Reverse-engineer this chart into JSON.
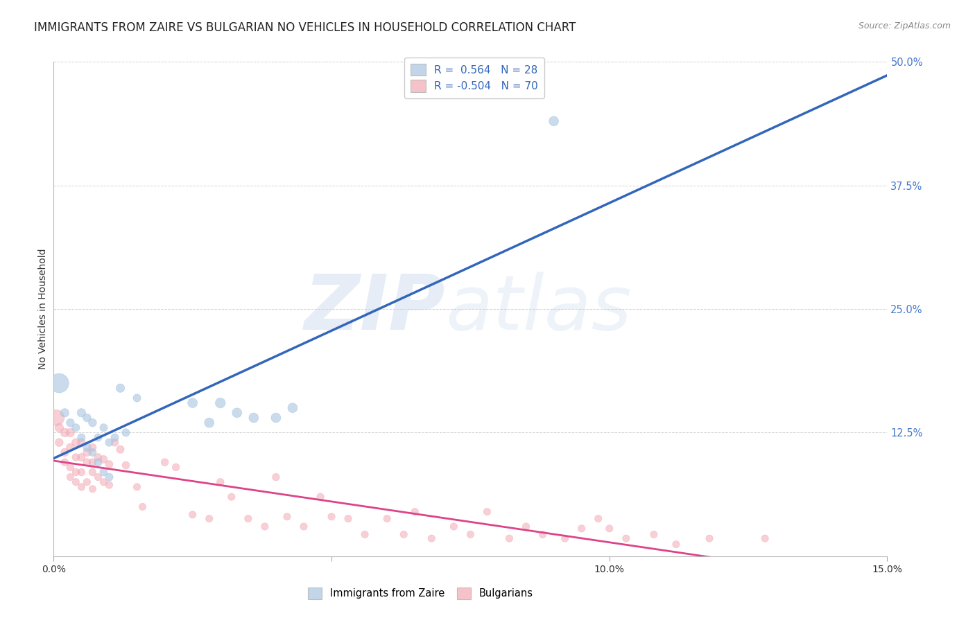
{
  "title": "IMMIGRANTS FROM ZAIRE VS BULGARIAN NO VEHICLES IN HOUSEHOLD CORRELATION CHART",
  "source_text": "Source: ZipAtlas.com",
  "ylabel": "No Vehicles in Household",
  "xlabel_blue": "Immigrants from Zaire",
  "xlabel_pink": "Bulgarians",
  "xlim": [
    0.0,
    0.15
  ],
  "ylim": [
    0.0,
    0.5
  ],
  "yticks": [
    0.0,
    0.125,
    0.25,
    0.375,
    0.5
  ],
  "ytick_labels": [
    "",
    "12.5%",
    "25.0%",
    "37.5%",
    "50.0%"
  ],
  "xticks": [
    0.0,
    0.05,
    0.1,
    0.15
  ],
  "xtick_labels": [
    "0.0%",
    "",
    "10.0%",
    "15.0%"
  ],
  "legend_r_blue": "0.564",
  "legend_n_blue": "28",
  "legend_r_pink": "-0.504",
  "legend_n_pink": "70",
  "blue_color": "#A8C4E0",
  "pink_color": "#F2A8B4",
  "line_blue_color": "#3366BB",
  "line_pink_color": "#DD4488",
  "background_color": "#FFFFFF",
  "title_fontsize": 12,
  "tick_color": "#4477CC",
  "blue_points_x": [
    0.001,
    0.002,
    0.003,
    0.004,
    0.005,
    0.005,
    0.006,
    0.006,
    0.007,
    0.007,
    0.008,
    0.008,
    0.009,
    0.009,
    0.01,
    0.01,
    0.011,
    0.012,
    0.013,
    0.015,
    0.025,
    0.028,
    0.03,
    0.033,
    0.036,
    0.04,
    0.043,
    0.09
  ],
  "blue_points_y": [
    0.175,
    0.145,
    0.135,
    0.13,
    0.145,
    0.12,
    0.14,
    0.11,
    0.135,
    0.105,
    0.12,
    0.095,
    0.13,
    0.085,
    0.115,
    0.08,
    0.12,
    0.17,
    0.125,
    0.16,
    0.155,
    0.135,
    0.155,
    0.145,
    0.14,
    0.14,
    0.15,
    0.44
  ],
  "blue_points_size": [
    400,
    80,
    70,
    65,
    80,
    65,
    70,
    65,
    70,
    65,
    65,
    65,
    65,
    65,
    65,
    65,
    65,
    80,
    65,
    65,
    100,
    100,
    110,
    100,
    100,
    100,
    100,
    100
  ],
  "pink_points_x": [
    0.0005,
    0.001,
    0.001,
    0.002,
    0.002,
    0.002,
    0.003,
    0.003,
    0.003,
    0.003,
    0.004,
    0.004,
    0.004,
    0.004,
    0.005,
    0.005,
    0.005,
    0.005,
    0.006,
    0.006,
    0.006,
    0.007,
    0.007,
    0.007,
    0.007,
    0.008,
    0.008,
    0.009,
    0.009,
    0.01,
    0.01,
    0.011,
    0.012,
    0.013,
    0.015,
    0.016,
    0.02,
    0.022,
    0.025,
    0.028,
    0.03,
    0.032,
    0.035,
    0.038,
    0.04,
    0.042,
    0.045,
    0.048,
    0.05,
    0.053,
    0.056,
    0.06,
    0.063,
    0.065,
    0.068,
    0.072,
    0.075,
    0.078,
    0.082,
    0.085,
    0.088,
    0.092,
    0.095,
    0.098,
    0.1,
    0.103,
    0.108,
    0.112,
    0.118,
    0.128
  ],
  "pink_points_y": [
    0.14,
    0.13,
    0.115,
    0.125,
    0.105,
    0.095,
    0.125,
    0.11,
    0.09,
    0.08,
    0.115,
    0.1,
    0.085,
    0.075,
    0.115,
    0.1,
    0.085,
    0.07,
    0.105,
    0.095,
    0.075,
    0.11,
    0.095,
    0.085,
    0.068,
    0.1,
    0.08,
    0.098,
    0.075,
    0.093,
    0.072,
    0.115,
    0.108,
    0.092,
    0.07,
    0.05,
    0.095,
    0.09,
    0.042,
    0.038,
    0.075,
    0.06,
    0.038,
    0.03,
    0.08,
    0.04,
    0.03,
    0.06,
    0.04,
    0.038,
    0.022,
    0.038,
    0.022,
    0.045,
    0.018,
    0.03,
    0.022,
    0.045,
    0.018,
    0.03,
    0.022,
    0.018,
    0.028,
    0.038,
    0.028,
    0.018,
    0.022,
    0.012,
    0.018,
    0.018
  ],
  "pink_points_size": [
    270,
    80,
    70,
    80,
    70,
    60,
    80,
    70,
    60,
    55,
    70,
    60,
    58,
    55,
    70,
    65,
    58,
    55,
    68,
    62,
    56,
    65,
    60,
    58,
    54,
    62,
    56,
    62,
    56,
    62,
    56,
    62,
    65,
    60,
    55,
    55,
    60,
    58,
    55,
    55,
    58,
    55,
    55,
    55,
    58,
    55,
    55,
    56,
    55,
    55,
    55,
    55,
    55,
    55,
    55,
    55,
    55,
    55,
    55,
    55,
    55,
    55,
    55,
    55,
    55,
    55,
    55,
    55,
    55,
    55
  ]
}
